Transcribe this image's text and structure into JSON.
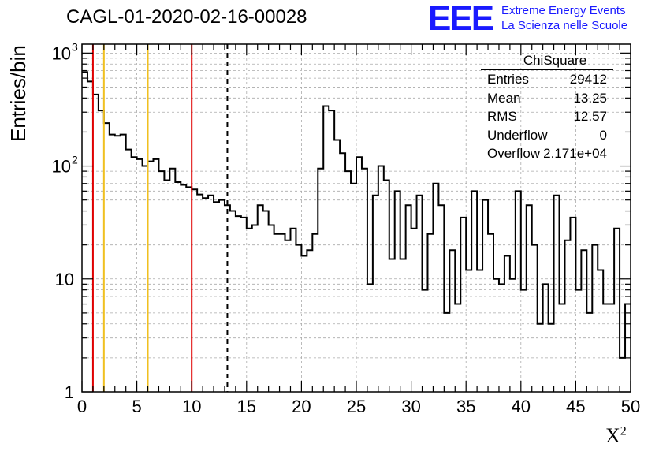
{
  "chart_data": {
    "type": "histogram",
    "title": "CAGL-01-2020-02-16-00028",
    "xlabel": "X",
    "xlabel_sup": "2",
    "ylabel": "Entries/bin",
    "x_range": [
      0,
      50
    ],
    "y_range": [
      1,
      1200
    ],
    "y_scale": "log",
    "grid": true,
    "x_ticks": [
      0,
      5,
      10,
      15,
      20,
      25,
      30,
      35,
      40,
      45,
      50
    ],
    "y_tick_labels": [
      {
        "value": 1,
        "label": "1"
      },
      {
        "value": 10,
        "label": "10"
      },
      {
        "value": 100,
        "label": "10",
        "sup": "2"
      },
      {
        "value": 1000,
        "label": "10",
        "sup": "3"
      }
    ],
    "bin_width": 0.5,
    "bins_start": 0,
    "values": [
      680,
      560,
      430,
      310,
      240,
      190,
      185,
      190,
      140,
      120,
      115,
      100,
      110,
      115,
      90,
      75,
      95,
      72,
      68,
      65,
      62,
      56,
      52,
      55,
      48,
      50,
      45,
      40,
      36,
      35,
      28,
      30,
      45,
      40,
      30,
      25,
      25,
      22,
      28,
      20,
      16,
      18,
      25,
      95,
      340,
      310,
      170,
      130,
      90,
      70,
      120,
      95,
      9,
      55,
      100,
      75,
      15,
      60,
      15,
      45,
      28,
      55,
      8,
      25,
      70,
      45,
      5,
      18,
      6,
      35,
      12,
      60,
      12,
      50,
      25,
      10,
      9,
      16,
      10,
      60,
      8,
      45,
      20,
      4,
      9,
      4,
      55,
      6,
      22,
      35,
      8,
      18,
      5,
      20,
      12,
      6,
      6,
      28,
      2,
      6
    ],
    "vlines": [
      {
        "x": 1,
        "color": "#e00000",
        "style": "solid"
      },
      {
        "x": 2,
        "color": "#f0c020",
        "style": "solid"
      },
      {
        "x": 6,
        "color": "#f0c020",
        "style": "solid"
      },
      {
        "x": 10,
        "color": "#e00000",
        "style": "solid"
      },
      {
        "x": 13.25,
        "color": "#000000",
        "style": "dashed"
      }
    ],
    "line_color": "#000000",
    "stats_box": {
      "title": "ChiSquare",
      "rows": [
        {
          "key": "Entries",
          "value": "29412"
        },
        {
          "key": "Mean",
          "value": "13.25"
        },
        {
          "key": "RMS",
          "value": "12.57"
        },
        {
          "key": "Underflow",
          "value": "0"
        },
        {
          "key": "Overflow",
          "value": "2.171e+04"
        }
      ]
    }
  },
  "logo": {
    "mark": "EEE",
    "line1": "Extreme Energy Events",
    "line2": "La Scienza nelle Scuole",
    "color": "#1a1aff"
  }
}
